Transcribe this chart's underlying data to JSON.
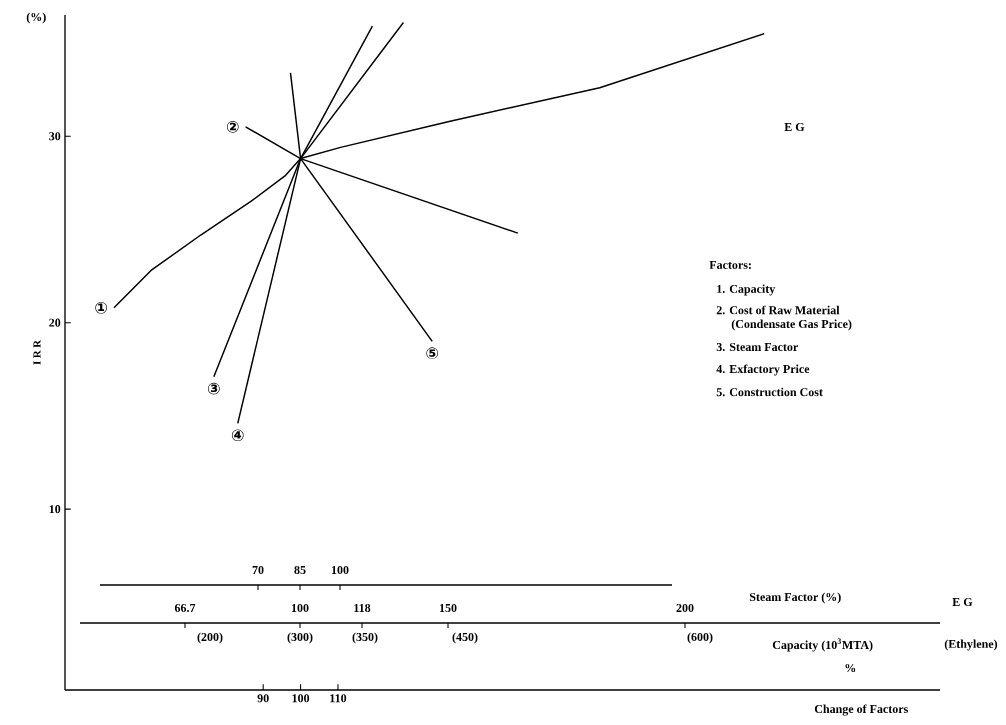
{
  "chart_data": [
    {
      "type": "line",
      "xlabel": "Change of Factors",
      "ylabel": "I R R",
      "xlim": [
        37,
        271
      ],
      "xticks": [
        90,
        100,
        110
      ],
      "ylim": [
        0.3,
        36.5
      ],
      "yticks": [
        10,
        20,
        30
      ],
      "annotations": [
        "(%)",
        "E G",
        "Factors:",
        "1. Capacity",
        "2. Cost of Raw Material",
        "(Condensate Gas Price)",
        "3. Steam Factor",
        "4. Exfactory Price",
        "5. Construction Cost",
        "%"
      ],
      "series": [
        {
          "name": "①",
          "color": "#000000",
          "x": [
            50.1,
            60,
            73.3,
            86.7,
            96,
            100,
            110.7,
            140,
            180,
            224
          ],
          "values": [
            20.8,
            22.8,
            24.7,
            26.5,
            27.9,
            28.8,
            29.4,
            30.8,
            32.6,
            35.5
          ]
        },
        {
          "name": "②",
          "color": "#000000",
          "x": [
            85.3,
            100,
            158.1
          ],
          "values": [
            30.5,
            28.8,
            24.8
          ]
        },
        {
          "name": "③",
          "color": "#000000",
          "x": [
            76.8,
            100,
            119.2
          ],
          "values": [
            17.1,
            28.8,
            35.9
          ]
        },
        {
          "name": "④",
          "color": "#000000",
          "x": [
            83.2,
            100,
            127.5
          ],
          "values": [
            14.6,
            28.8,
            36.1
          ]
        },
        {
          "name": "⑤",
          "color": "#000000",
          "x": [
            135.2,
            100,
            97.3
          ],
          "values": [
            19.0,
            28.8,
            33.4
          ]
        }
      ]
    },
    {
      "type": "other",
      "annotations": [
        "70",
        "85",
        "100",
        "66.7",
        "100",
        "118",
        "150",
        "200",
        "(200)",
        "(300)",
        "(350)",
        "(450)",
        "(600)",
        "Steam Factor (%)",
        "Capacity (10$^{3}$MTA)",
        "E G",
        "(Ethylene)"
      ]
    }
  ]
}
